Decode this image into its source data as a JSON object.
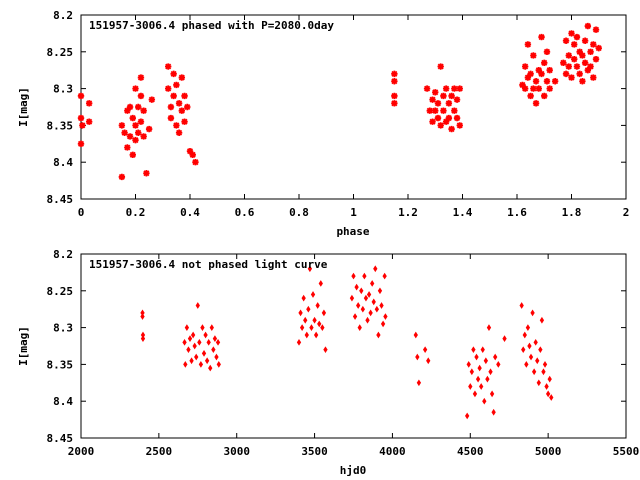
{
  "chart_data": [
    {
      "type": "scatter",
      "title": "151957-3006.4 phased with P=2080.0day",
      "xlabel": "phase",
      "ylabel": "I[mag]",
      "xlim": [
        0,
        2
      ],
      "ylim": [
        8.45,
        8.2
      ],
      "y_inverted": true,
      "xticks": [
        "0",
        "0.2",
        "0.4",
        "0.6",
        "0.8",
        "1",
        "1.2",
        "1.4",
        "1.6",
        "1.8",
        "2"
      ],
      "yticks": [
        "8.2",
        "8.25",
        "8.3",
        "8.35",
        "8.4",
        "8.45"
      ],
      "marker": "star",
      "color": "#ff0000",
      "points": [
        [
          0.0,
          8.31
        ],
        [
          0.0,
          8.34
        ],
        [
          0.0,
          8.375
        ],
        [
          0.005,
          8.35
        ],
        [
          0.03,
          8.32
        ],
        [
          0.03,
          8.345
        ],
        [
          0.15,
          8.42
        ],
        [
          0.15,
          8.35
        ],
        [
          0.16,
          8.36
        ],
        [
          0.17,
          8.33
        ],
        [
          0.17,
          8.38
        ],
        [
          0.18,
          8.325
        ],
        [
          0.18,
          8.365
        ],
        [
          0.19,
          8.34
        ],
        [
          0.19,
          8.39
        ],
        [
          0.2,
          8.35
        ],
        [
          0.2,
          8.37
        ],
        [
          0.2,
          8.3
        ],
        [
          0.21,
          8.36
        ],
        [
          0.21,
          8.325
        ],
        [
          0.22,
          8.285
        ],
        [
          0.22,
          8.31
        ],
        [
          0.22,
          8.345
        ],
        [
          0.23,
          8.365
        ],
        [
          0.23,
          8.33
        ],
        [
          0.24,
          8.415
        ],
        [
          0.25,
          8.355
        ],
        [
          0.26,
          8.315
        ],
        [
          0.32,
          8.27
        ],
        [
          0.32,
          8.3
        ],
        [
          0.33,
          8.325
        ],
        [
          0.33,
          8.34
        ],
        [
          0.34,
          8.28
        ],
        [
          0.34,
          8.31
        ],
        [
          0.35,
          8.35
        ],
        [
          0.35,
          8.295
        ],
        [
          0.36,
          8.32
        ],
        [
          0.36,
          8.36
        ],
        [
          0.37,
          8.33
        ],
        [
          0.37,
          8.285
        ],
        [
          0.38,
          8.31
        ],
        [
          0.38,
          8.345
        ],
        [
          0.39,
          8.325
        ],
        [
          0.4,
          8.385
        ],
        [
          0.41,
          8.39
        ],
        [
          0.42,
          8.4
        ],
        [
          1.15,
          8.28
        ],
        [
          1.15,
          8.29
        ],
        [
          1.15,
          8.31
        ],
        [
          1.15,
          8.32
        ],
        [
          1.27,
          8.3
        ],
        [
          1.28,
          8.33
        ],
        [
          1.29,
          8.315
        ],
        [
          1.29,
          8.345
        ],
        [
          1.3,
          8.305
        ],
        [
          1.3,
          8.33
        ],
        [
          1.31,
          8.34
        ],
        [
          1.31,
          8.32
        ],
        [
          1.32,
          8.27
        ],
        [
          1.32,
          8.35
        ],
        [
          1.33,
          8.31
        ],
        [
          1.33,
          8.33
        ],
        [
          1.34,
          8.3
        ],
        [
          1.34,
          8.345
        ],
        [
          1.35,
          8.32
        ],
        [
          1.35,
          8.34
        ],
        [
          1.36,
          8.31
        ],
        [
          1.36,
          8.355
        ],
        [
          1.37,
          8.33
        ],
        [
          1.37,
          8.3
        ],
        [
          1.38,
          8.34
        ],
        [
          1.38,
          8.315
        ],
        [
          1.39,
          8.35
        ],
        [
          1.39,
          8.3
        ],
        [
          1.62,
          8.295
        ],
        [
          1.63,
          8.27
        ],
        [
          1.63,
          8.3
        ],
        [
          1.64,
          8.285
        ],
        [
          1.64,
          8.24
        ],
        [
          1.65,
          8.31
        ],
        [
          1.65,
          8.28
        ],
        [
          1.66,
          8.3
        ],
        [
          1.66,
          8.255
        ],
        [
          1.67,
          8.29
        ],
        [
          1.67,
          8.32
        ],
        [
          1.68,
          8.275
        ],
        [
          1.68,
          8.3
        ],
        [
          1.69,
          8.23
        ],
        [
          1.69,
          8.28
        ],
        [
          1.7,
          8.31
        ],
        [
          1.7,
          8.265
        ],
        [
          1.71,
          8.29
        ],
        [
          1.71,
          8.25
        ],
        [
          1.72,
          8.275
        ],
        [
          1.72,
          8.3
        ],
        [
          1.74,
          8.29
        ],
        [
          1.77,
          8.265
        ],
        [
          1.78,
          8.235
        ],
        [
          1.78,
          8.28
        ],
        [
          1.79,
          8.255
        ],
        [
          1.79,
          8.27
        ],
        [
          1.8,
          8.225
        ],
        [
          1.8,
          8.285
        ],
        [
          1.81,
          8.26
        ],
        [
          1.81,
          8.24
        ],
        [
          1.82,
          8.27
        ],
        [
          1.82,
          8.23
        ],
        [
          1.83,
          8.25
        ],
        [
          1.83,
          8.28
        ],
        [
          1.84,
          8.255
        ],
        [
          1.84,
          8.29
        ],
        [
          1.85,
          8.265
        ],
        [
          1.85,
          8.235
        ],
        [
          1.86,
          8.275
        ],
        [
          1.86,
          8.215
        ],
        [
          1.87,
          8.25
        ],
        [
          1.87,
          8.27
        ],
        [
          1.88,
          8.24
        ],
        [
          1.88,
          8.285
        ],
        [
          1.89,
          8.26
        ],
        [
          1.89,
          8.22
        ],
        [
          1.9,
          8.245
        ]
      ]
    },
    {
      "type": "scatter",
      "title": "151957-3006.4 not phased light curve",
      "xlabel": "hjd0",
      "ylabel": "I[mag]",
      "xlim": [
        2000,
        5500
      ],
      "ylim": [
        8.45,
        8.2
      ],
      "y_inverted": true,
      "xticks": [
        "2000",
        "2500",
        "3000",
        "3500",
        "4000",
        "4500",
        "5000",
        "5500"
      ],
      "yticks": [
        "8.2",
        "8.25",
        "8.3",
        "8.35",
        "8.4",
        "8.45"
      ],
      "marker": "diamond",
      "color": "#ff0000",
      "points": [
        [
          2395,
          8.28
        ],
        [
          2395,
          8.285
        ],
        [
          2398,
          8.31
        ],
        [
          2398,
          8.315
        ],
        [
          2665,
          8.32
        ],
        [
          2670,
          8.35
        ],
        [
          2680,
          8.3
        ],
        [
          2690,
          8.33
        ],
        [
          2700,
          8.315
        ],
        [
          2710,
          8.345
        ],
        [
          2720,
          8.31
        ],
        [
          2730,
          8.325
        ],
        [
          2740,
          8.34
        ],
        [
          2750,
          8.27
        ],
        [
          2760,
          8.32
        ],
        [
          2770,
          8.35
        ],
        [
          2780,
          8.3
        ],
        [
          2790,
          8.335
        ],
        [
          2800,
          8.31
        ],
        [
          2810,
          8.345
        ],
        [
          2820,
          8.32
        ],
        [
          2830,
          8.355
        ],
        [
          2840,
          8.3
        ],
        [
          2850,
          8.33
        ],
        [
          2860,
          8.315
        ],
        [
          2870,
          8.34
        ],
        [
          2880,
          8.32
        ],
        [
          2885,
          8.35
        ],
        [
          3400,
          8.32
        ],
        [
          3410,
          8.28
        ],
        [
          3420,
          8.3
        ],
        [
          3430,
          8.26
        ],
        [
          3440,
          8.29
        ],
        [
          3450,
          8.31
        ],
        [
          3460,
          8.275
        ],
        [
          3470,
          8.22
        ],
        [
          3480,
          8.3
        ],
        [
          3490,
          8.255
        ],
        [
          3500,
          8.29
        ],
        [
          3510,
          8.31
        ],
        [
          3520,
          8.27
        ],
        [
          3530,
          8.295
        ],
        [
          3540,
          8.24
        ],
        [
          3550,
          8.3
        ],
        [
          3560,
          8.28
        ],
        [
          3570,
          8.33
        ],
        [
          3740,
          8.26
        ],
        [
          3750,
          8.23
        ],
        [
          3760,
          8.285
        ],
        [
          3770,
          8.245
        ],
        [
          3780,
          8.27
        ],
        [
          3790,
          8.3
        ],
        [
          3800,
          8.25
        ],
        [
          3810,
          8.275
        ],
        [
          3820,
          8.23
        ],
        [
          3830,
          8.26
        ],
        [
          3840,
          8.29
        ],
        [
          3850,
          8.255
        ],
        [
          3860,
          8.28
        ],
        [
          3870,
          8.24
        ],
        [
          3880,
          8.265
        ],
        [
          3890,
          8.22
        ],
        [
          3900,
          8.275
        ],
        [
          3910,
          8.31
        ],
        [
          3920,
          8.25
        ],
        [
          3930,
          8.27
        ],
        [
          3940,
          8.295
        ],
        [
          3950,
          8.23
        ],
        [
          3955,
          8.285
        ],
        [
          4150,
          8.31
        ],
        [
          4160,
          8.34
        ],
        [
          4170,
          8.375
        ],
        [
          4210,
          8.33
        ],
        [
          4230,
          8.345
        ],
        [
          4480,
          8.42
        ],
        [
          4490,
          8.35
        ],
        [
          4500,
          8.38
        ],
        [
          4510,
          8.36
        ],
        [
          4520,
          8.33
        ],
        [
          4530,
          8.39
        ],
        [
          4540,
          8.34
        ],
        [
          4550,
          8.37
        ],
        [
          4560,
          8.355
        ],
        [
          4570,
          8.38
        ],
        [
          4580,
          8.33
        ],
        [
          4590,
          8.4
        ],
        [
          4600,
          8.345
        ],
        [
          4610,
          8.37
        ],
        [
          4620,
          8.3
        ],
        [
          4630,
          8.36
        ],
        [
          4640,
          8.39
        ],
        [
          4650,
          8.415
        ],
        [
          4660,
          8.34
        ],
        [
          4680,
          8.35
        ],
        [
          4720,
          8.315
        ],
        [
          4830,
          8.27
        ],
        [
          4840,
          8.33
        ],
        [
          4850,
          8.31
        ],
        [
          4860,
          8.35
        ],
        [
          4870,
          8.3
        ],
        [
          4880,
          8.325
        ],
        [
          4890,
          8.34
        ],
        [
          4900,
          8.28
        ],
        [
          4910,
          8.36
        ],
        [
          4920,
          8.32
        ],
        [
          4930,
          8.345
        ],
        [
          4940,
          8.375
        ],
        [
          4950,
          8.33
        ],
        [
          4960,
          8.29
        ],
        [
          4970,
          8.36
        ],
        [
          4980,
          8.35
        ],
        [
          4990,
          8.38
        ],
        [
          5000,
          8.39
        ],
        [
          5010,
          8.37
        ],
        [
          5020,
          8.395
        ]
      ]
    }
  ]
}
